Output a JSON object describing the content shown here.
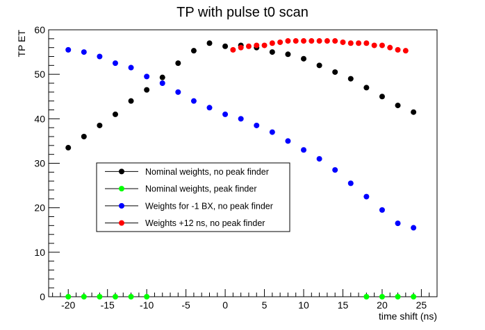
{
  "chart_data": {
    "type": "scatter",
    "title": "TP with pulse t0 scan",
    "xlabel": "time shift (ns)",
    "ylabel": "TP ET",
    "xlim": [
      -22.5,
      27
    ],
    "ylim": [
      0,
      60
    ],
    "x_ticks": [
      -20,
      -15,
      -10,
      -5,
      0,
      5,
      10,
      15,
      20,
      25
    ],
    "y_ticks": [
      0,
      10,
      20,
      30,
      40,
      50,
      60
    ],
    "grid": false,
    "legend_position": "center-left",
    "series": [
      {
        "name": "Nominal weights, no peak finder",
        "color": "#000000",
        "points": [
          [
            -20,
            33.5
          ],
          [
            -18,
            36
          ],
          [
            -16,
            38.5
          ],
          [
            -14,
            41
          ],
          [
            -12,
            44
          ],
          [
            -10,
            46.5
          ],
          [
            -8,
            49.3
          ],
          [
            -6,
            52.5
          ],
          [
            -4,
            55.3
          ],
          [
            -2,
            57
          ],
          [
            0,
            56.3
          ],
          [
            2,
            56.5
          ],
          [
            4,
            56
          ],
          [
            6,
            55
          ],
          [
            8,
            54.5
          ],
          [
            10,
            53.5
          ],
          [
            12,
            52
          ],
          [
            14,
            50.5
          ],
          [
            16,
            49
          ],
          [
            18,
            47
          ],
          [
            20,
            45
          ],
          [
            22,
            43
          ],
          [
            24,
            41.5
          ]
        ]
      },
      {
        "name": "Nominal weights, peak finder",
        "color": "#00ff00",
        "points": [
          [
            -20,
            0
          ],
          [
            -18,
            0
          ],
          [
            -16,
            0
          ],
          [
            -14,
            0
          ],
          [
            -12,
            0
          ],
          [
            -10,
            0
          ],
          [
            18,
            0
          ],
          [
            20,
            0
          ],
          [
            22,
            0
          ],
          [
            24,
            0
          ]
        ]
      },
      {
        "name": "Weights for -1 BX, no peak finder",
        "color": "#0000ff",
        "points": [
          [
            -20,
            55.5
          ],
          [
            -18,
            55
          ],
          [
            -16,
            54
          ],
          [
            -14,
            52.5
          ],
          [
            -12,
            51.5
          ],
          [
            -10,
            49.5
          ],
          [
            -8,
            48
          ],
          [
            -6,
            46
          ],
          [
            -4,
            44
          ],
          [
            -2,
            42.5
          ],
          [
            0,
            41
          ],
          [
            2,
            40
          ],
          [
            4,
            38.5
          ],
          [
            6,
            37
          ],
          [
            8,
            35
          ],
          [
            10,
            33
          ],
          [
            12,
            31
          ],
          [
            14,
            28.5
          ],
          [
            16,
            25.5
          ],
          [
            18,
            22.5
          ],
          [
            20,
            19.5
          ],
          [
            22,
            16.5
          ],
          [
            24,
            15.5
          ]
        ]
      },
      {
        "name": "Weights +12 ns, no peak finder",
        "color": "#ff0000",
        "points": [
          [
            1,
            55.5
          ],
          [
            2,
            56
          ],
          [
            3,
            56.3
          ],
          [
            4,
            56.5
          ],
          [
            5,
            56.5
          ],
          [
            6,
            57
          ],
          [
            7,
            57.2
          ],
          [
            8,
            57.5
          ],
          [
            9,
            57.5
          ],
          [
            10,
            57.5
          ],
          [
            11,
            57.5
          ],
          [
            12,
            57.5
          ],
          [
            13,
            57.5
          ],
          [
            14,
            57.5
          ],
          [
            15,
            57.2
          ],
          [
            16,
            57
          ],
          [
            17,
            57
          ],
          [
            18,
            57
          ],
          [
            19,
            56.5
          ],
          [
            20,
            56.5
          ],
          [
            21,
            56
          ],
          [
            22,
            55.5
          ],
          [
            23,
            55.3
          ]
        ]
      }
    ]
  }
}
